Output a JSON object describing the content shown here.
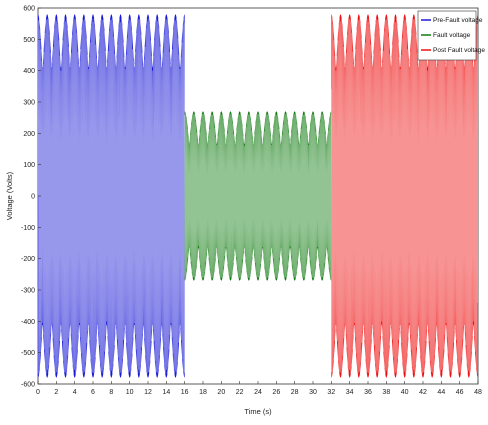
{
  "chart_data": {
    "type": "line",
    "xlabel": "Time (s)",
    "ylabel": "Voltage (Volts)",
    "xlim": [
      0,
      48
    ],
    "ylim": [
      -600,
      600
    ],
    "x_ticks": [
      "0",
      "2",
      "4",
      "6",
      "8",
      "10",
      "12",
      "14",
      "16",
      "18",
      "20",
      "22",
      "24",
      "26",
      "28",
      "30",
      "32",
      "34",
      "36",
      "38",
      "40",
      "42",
      "44",
      "46",
      "48"
    ],
    "y_ticks": [
      "600",
      "500",
      "400",
      "300",
      "200",
      "100",
      "0",
      "-100",
      "-200",
      "-300",
      "-400",
      "-500",
      "-600"
    ],
    "grid": false,
    "legend_position": "top-right",
    "series": [
      {
        "name": "Pre-Fault voltage",
        "color": "#1a1ad6",
        "x_range": [
          0,
          16
        ],
        "amplitude": 580,
        "envelope_min": 400
      },
      {
        "name": "Fault voltage",
        "color": "#0f7a0f",
        "x_range": [
          16,
          32
        ],
        "amplitude": 270,
        "envelope_min": 160
      },
      {
        "name": "Post Fault voltage",
        "color": "#ee1010",
        "x_range": [
          32,
          48
        ],
        "amplitude": 580,
        "envelope_min": 400
      }
    ]
  }
}
